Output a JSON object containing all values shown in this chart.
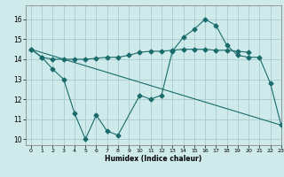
{
  "xlabel": "Humidex (Indice chaleur)",
  "bg_color": "#ceeaea",
  "grid_color": "#aacccc",
  "line_color": "#1a6b6b",
  "xlim": [
    -0.5,
    23
  ],
  "ylim": [
    9.7,
    16.7
  ],
  "yticks": [
    10,
    11,
    12,
    13,
    14,
    15,
    16
  ],
  "xticks": [
    0,
    1,
    2,
    3,
    4,
    5,
    6,
    7,
    8,
    9,
    10,
    11,
    12,
    13,
    14,
    15,
    16,
    17,
    18,
    19,
    20,
    21,
    22,
    23
  ],
  "series1_x": [
    0,
    1,
    2,
    3,
    4,
    5,
    6,
    7,
    8,
    10,
    11,
    12,
    13,
    14,
    15,
    16,
    17,
    18,
    19,
    20,
    21,
    22,
    23
  ],
  "series1_y": [
    14.5,
    14.1,
    13.5,
    13.0,
    11.3,
    10.0,
    11.2,
    10.4,
    10.2,
    12.2,
    12.0,
    12.2,
    14.4,
    15.1,
    15.5,
    16.0,
    15.7,
    14.7,
    14.2,
    14.1,
    14.1,
    12.8,
    10.7
  ],
  "series2_x": [
    0,
    1,
    2,
    3,
    4,
    5,
    6,
    7,
    8,
    9,
    10,
    11,
    12,
    13,
    14,
    15,
    16,
    17,
    18,
    19,
    20
  ],
  "series2_y": [
    14.5,
    14.1,
    14.0,
    14.0,
    14.0,
    14.0,
    14.05,
    14.1,
    14.1,
    14.2,
    14.35,
    14.4,
    14.4,
    14.45,
    14.5,
    14.5,
    14.5,
    14.45,
    14.45,
    14.4,
    14.35
  ],
  "series3_x": [
    0,
    23
  ],
  "series3_y": [
    14.5,
    10.7
  ],
  "marker": "D",
  "markersize": 2.5,
  "linewidth": 0.8
}
